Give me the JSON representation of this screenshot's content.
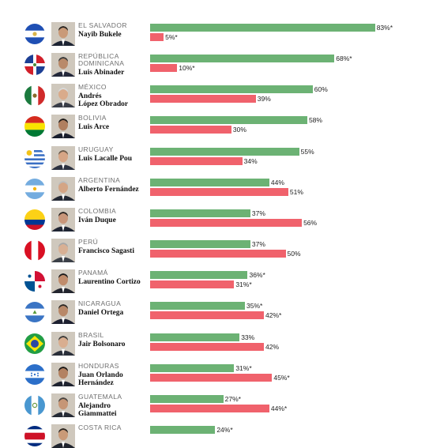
{
  "colors": {
    "approve": "#6cb274",
    "disapprove": "#f0626c"
  },
  "chart_data": {
    "type": "bar",
    "orientation": "horizontal",
    "xlim": [
      0,
      100
    ],
    "series": [
      {
        "color": "#6cb274"
      },
      {
        "color": "#f0626c"
      }
    ],
    "rows": [
      {
        "country": "EL SALVADOR",
        "leader": "Nayib Bukele",
        "approve": 83,
        "approve_label": "83%*",
        "disapprove": 5,
        "disapprove_label": "5%*",
        "flag": "el-salvador"
      },
      {
        "country": "REPÚBLICA\nDOMINICANA",
        "leader": "Luis Abinader",
        "approve": 68,
        "approve_label": "68%*",
        "disapprove": 10,
        "disapprove_label": "10%*",
        "flag": "dominican-republic"
      },
      {
        "country": "MÉXICO",
        "leader": "Andrés\nLópez Obrador",
        "approve": 60,
        "approve_label": "60%",
        "disapprove": 39,
        "disapprove_label": "39%",
        "flag": "mexico"
      },
      {
        "country": "BOLIVIA",
        "leader": "Luis Arce",
        "approve": 58,
        "approve_label": "58%",
        "disapprove": 30,
        "disapprove_label": "30%",
        "flag": "bolivia"
      },
      {
        "country": "URUGUAY",
        "leader": "Luis Lacalle Pou",
        "approve": 55,
        "approve_label": "55%",
        "disapprove": 34,
        "disapprove_label": "34%",
        "flag": "uruguay"
      },
      {
        "country": "ARGENTINA",
        "leader": "Alberto Fernández",
        "approve": 44,
        "approve_label": "44%",
        "disapprove": 51,
        "disapprove_label": "51%",
        "flag": "argentina"
      },
      {
        "country": "COLOMBIA",
        "leader": "Iván Duque",
        "approve": 37,
        "approve_label": "37%",
        "disapprove": 56,
        "disapprove_label": "56%",
        "flag": "colombia"
      },
      {
        "country": "PERÚ",
        "leader": "Francisco Sagasti",
        "approve": 37,
        "approve_label": "37%",
        "disapprove": 50,
        "disapprove_label": "50%",
        "flag": "peru"
      },
      {
        "country": "PANAMÁ",
        "leader": "Laurentino Cortizo",
        "approve": 36,
        "approve_label": "36%*",
        "disapprove": 31,
        "disapprove_label": "31%*",
        "flag": "panama"
      },
      {
        "country": "NICARAGUA",
        "leader": "Daniel Ortega",
        "approve": 35,
        "approve_label": "35%*",
        "disapprove": 42,
        "disapprove_label": "42%*",
        "flag": "nicaragua"
      },
      {
        "country": "BRASIL",
        "leader": "Jair Bolsonaro",
        "approve": 33,
        "approve_label": "33%",
        "disapprove": 42,
        "disapprove_label": "42%",
        "flag": "brazil"
      },
      {
        "country": "HONDURAS",
        "leader": "Juan Orlando\nHernández",
        "approve": 31,
        "approve_label": "31%*",
        "disapprove": 45,
        "disapprove_label": "45%*",
        "flag": "honduras"
      },
      {
        "country": "GUATEMALA",
        "leader": "Alejandro\nGiammattei",
        "approve": 27,
        "approve_label": "27%*",
        "disapprove": 44,
        "disapprove_label": "44%*",
        "flag": "guatemala"
      },
      {
        "country": "COSTA RICA",
        "leader": "",
        "approve": 24,
        "approve_label": "24%*",
        "disapprove": null,
        "disapprove_label": "",
        "flag": "costa-rica"
      }
    ]
  }
}
